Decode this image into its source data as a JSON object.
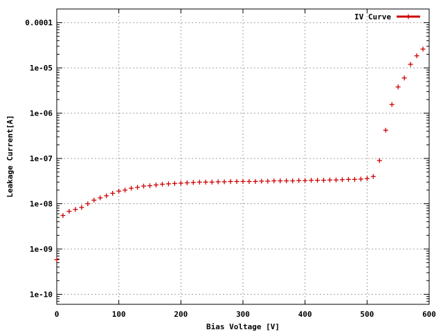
{
  "chart_data": {
    "type": "scatter",
    "xlabel": "Bias Voltage [V]",
    "ylabel": "Leakage Current[A]",
    "xlim": [
      0,
      600
    ],
    "ylim": [
      6e-11,
      0.0002
    ],
    "yscale": "log",
    "grid": true,
    "legend_position": "top-right",
    "x_ticks": [
      0,
      100,
      200,
      300,
      400,
      500,
      600
    ],
    "x_tick_labels": [
      "0",
      "100",
      "200",
      "300",
      "400",
      "500",
      "600"
    ],
    "y_ticks": [
      1e-10,
      1e-09,
      1e-08,
      1e-07,
      1e-06,
      1e-05,
      0.0001
    ],
    "y_tick_labels": [
      "1e-10",
      "1e-09",
      "1e-08",
      "1e-07",
      "1e-06",
      "1e-05",
      "0.0001"
    ],
    "series": [
      {
        "name": "IV Curve",
        "color": "#cc0000",
        "marker": "plus",
        "x": [
          0,
          10,
          20,
          30,
          40,
          50,
          60,
          70,
          80,
          90,
          100,
          110,
          120,
          130,
          140,
          150,
          160,
          170,
          180,
          190,
          200,
          210,
          220,
          230,
          240,
          250,
          260,
          270,
          280,
          290,
          300,
          310,
          320,
          330,
          340,
          350,
          360,
          370,
          380,
          390,
          400,
          410,
          420,
          430,
          440,
          450,
          460,
          470,
          480,
          490,
          500,
          510,
          520,
          530,
          540,
          550,
          560,
          570,
          580,
          590
        ],
        "y": [
          5.8e-10,
          5.5e-09,
          6.8e-09,
          7.5e-09,
          8.3e-09,
          1e-08,
          1.2e-08,
          1.35e-08,
          1.5e-08,
          1.7e-08,
          1.9e-08,
          2e-08,
          2.2e-08,
          2.3e-08,
          2.45e-08,
          2.5e-08,
          2.6e-08,
          2.7e-08,
          2.75e-08,
          2.8e-08,
          2.85e-08,
          2.9e-08,
          2.95e-08,
          3e-08,
          3e-08,
          3e-08,
          3.05e-08,
          3.05e-08,
          3.1e-08,
          3.1e-08,
          3.1e-08,
          3.1e-08,
          3.1e-08,
          3.15e-08,
          3.15e-08,
          3.2e-08,
          3.2e-08,
          3.2e-08,
          3.2e-08,
          3.25e-08,
          3.25e-08,
          3.3e-08,
          3.3e-08,
          3.3e-08,
          3.35e-08,
          3.35e-08,
          3.4e-08,
          3.45e-08,
          3.45e-08,
          3.5e-08,
          3.6e-08,
          4e-08,
          9e-08,
          4.2e-07,
          1.55e-06,
          3.8e-06,
          6e-06,
          1.2e-05,
          1.85e-05,
          2.6e-05
        ]
      }
    ]
  }
}
